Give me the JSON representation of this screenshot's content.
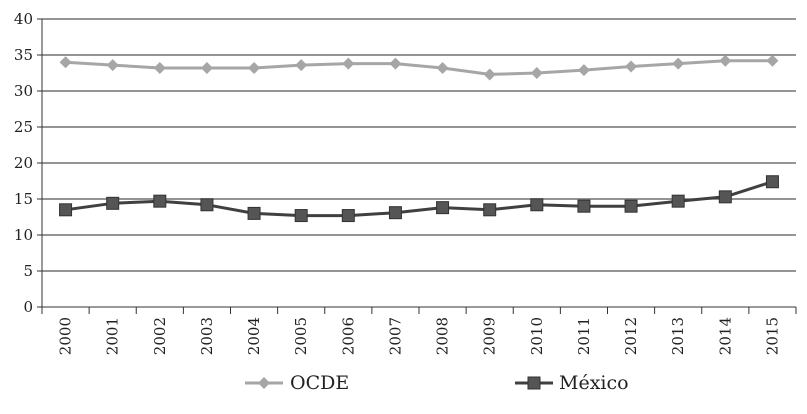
{
  "chart_data": {
    "type": "line",
    "title": "",
    "xlabel": "",
    "ylabel": "",
    "x": [
      "2000",
      "2001",
      "2002",
      "2003",
      "2004",
      "2005",
      "2006",
      "2007",
      "2008",
      "2009",
      "2010",
      "2011",
      "2012",
      "2013",
      "2014",
      "2015"
    ],
    "ylim": [
      0,
      40
    ],
    "yticks": [
      "0",
      "5",
      "10",
      "15",
      "20",
      "25",
      "30",
      "35",
      "40"
    ],
    "grid": "horizontal",
    "legend": "bottom",
    "series": [
      {
        "name": "OCDE",
        "color": "#a6a6a6",
        "marker": "diamond",
        "values": [
          34.0,
          33.6,
          33.2,
          33.2,
          33.2,
          33.6,
          33.8,
          33.8,
          33.2,
          32.3,
          32.5,
          32.9,
          33.4,
          33.8,
          34.2,
          34.2
        ]
      },
      {
        "name": "México",
        "color": "#404040",
        "marker": "square",
        "values": [
          13.5,
          14.4,
          14.7,
          14.2,
          13.0,
          12.7,
          12.7,
          13.1,
          13.8,
          13.5,
          14.2,
          14.0,
          14.0,
          14.7,
          15.3,
          17.4
        ]
      }
    ]
  }
}
